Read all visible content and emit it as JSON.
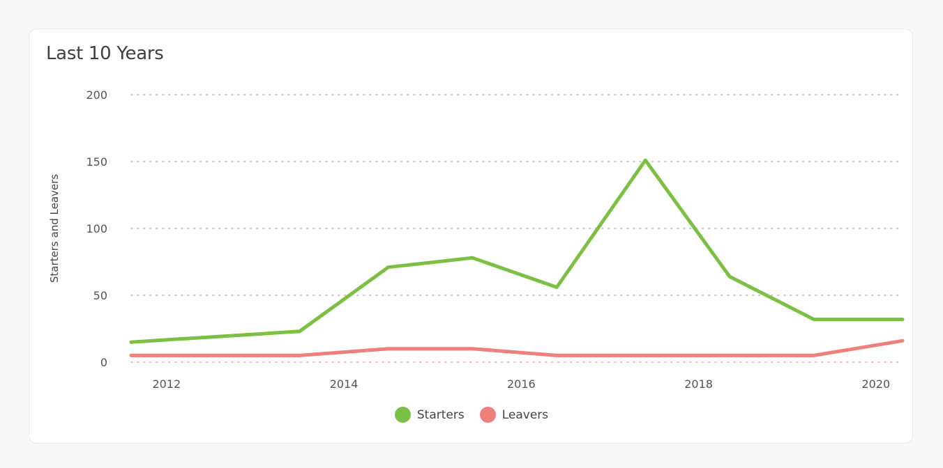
{
  "card": {
    "title": "Last 10 Years"
  },
  "chart_data": {
    "type": "line",
    "ylabel": "Starters and Leavers",
    "ylim": [
      0,
      200
    ],
    "yticks": [
      "0",
      "50",
      "100",
      "150",
      "200"
    ],
    "xlim": [
      2011.6,
      2020.3
    ],
    "xticks": [
      "2012",
      "2014",
      "2016",
      "2018",
      "2020"
    ],
    "grid": true,
    "legend_position": "bottom-center",
    "series": [
      {
        "name": "Starters",
        "color": "#7bc043",
        "points": [
          {
            "x": 2011.6,
            "y": 15
          },
          {
            "x": 2013.5,
            "y": 23
          },
          {
            "x": 2014.5,
            "y": 71
          },
          {
            "x": 2015.45,
            "y": 78
          },
          {
            "x": 2016.4,
            "y": 56
          },
          {
            "x": 2017.4,
            "y": 151
          },
          {
            "x": 2018.35,
            "y": 64
          },
          {
            "x": 2019.3,
            "y": 32
          },
          {
            "x": 2020.3,
            "y": 32
          }
        ]
      },
      {
        "name": "Leavers",
        "color": "#f07f7a",
        "points": [
          {
            "x": 2011.6,
            "y": 5
          },
          {
            "x": 2013.5,
            "y": 5
          },
          {
            "x": 2014.5,
            "y": 10
          },
          {
            "x": 2015.45,
            "y": 10
          },
          {
            "x": 2016.4,
            "y": 5
          },
          {
            "x": 2017.4,
            "y": 5
          },
          {
            "x": 2018.35,
            "y": 5
          },
          {
            "x": 2019.3,
            "y": 5
          },
          {
            "x": 2020.3,
            "y": 16
          }
        ]
      }
    ]
  }
}
